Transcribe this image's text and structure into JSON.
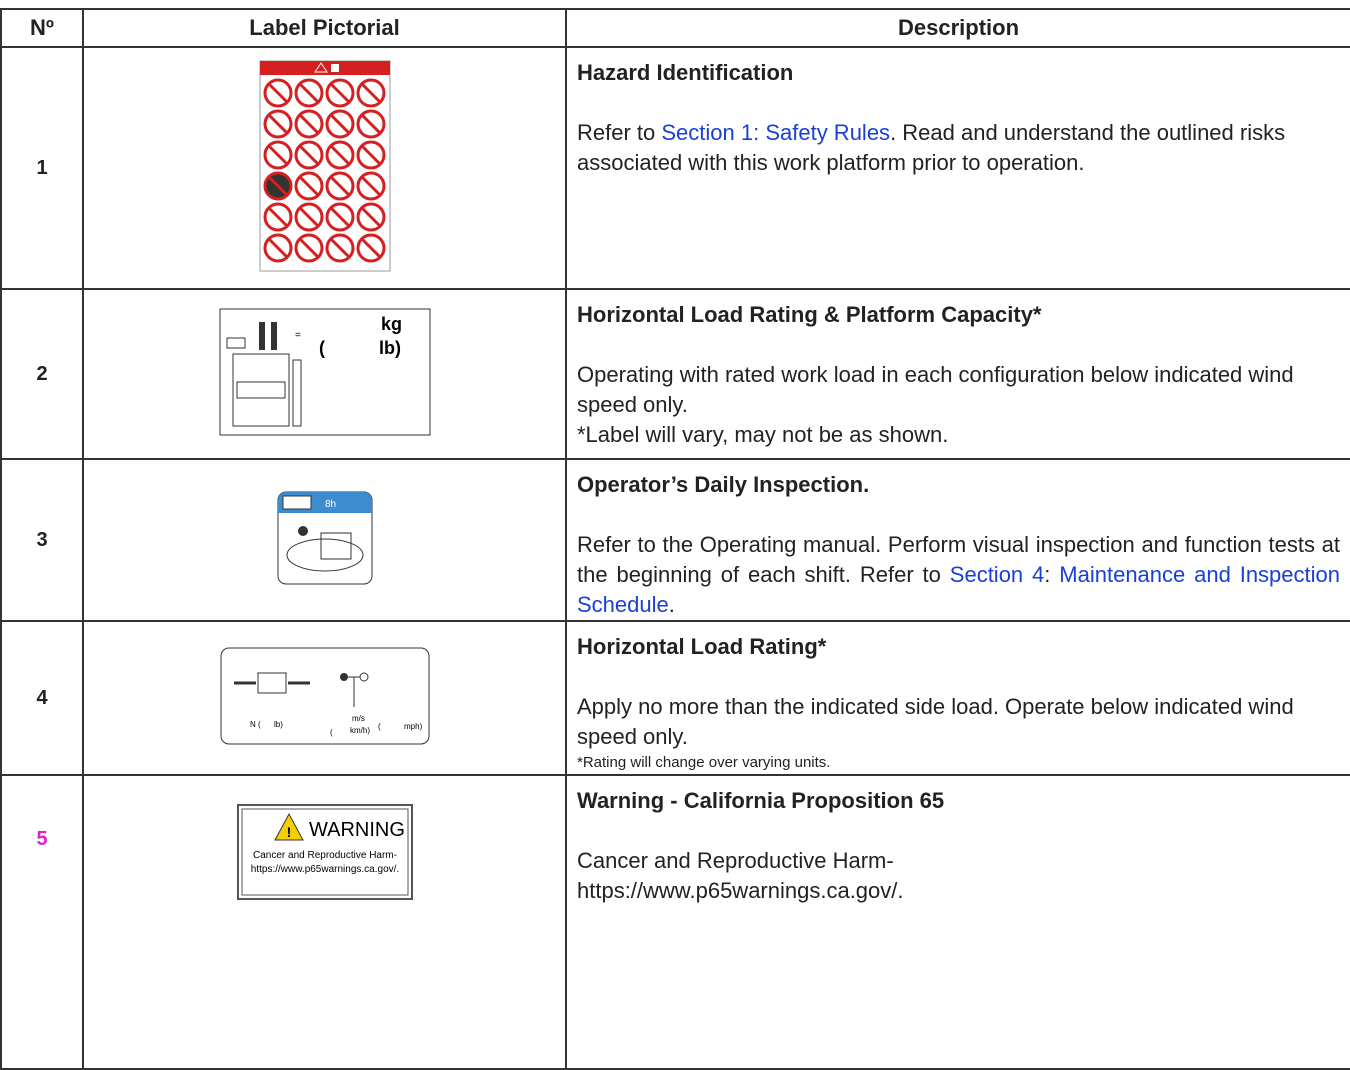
{
  "header": {
    "number": "Nº",
    "pictorial": "Label Pictorial",
    "description": "Description"
  },
  "rows": [
    {
      "number": "1",
      "title": "Hazard Identification",
      "body": [
        [
          {
            "text": "Refer to "
          },
          {
            "link": "Section 1: Safety Rules"
          },
          {
            "text": ". Read and understand the outlined risks associated with this work platform prior to operation."
          }
        ]
      ]
    },
    {
      "number": "2",
      "title": "Horizontal Load Rating & Platform Capacity*",
      "label_texts": [
        "=",
        "kg",
        "(",
        "lb)"
      ],
      "body": [
        [
          {
            "text": "Operating with rated work load in each configuration below indicated wind speed only."
          }
        ],
        [
          {
            "text": "*Label will vary, may not be as shown."
          }
        ]
      ]
    },
    {
      "number": "3",
      "title": "Operator’s Daily Inspection.",
      "label_texts": [
        "8h"
      ],
      "body": [
        [
          {
            "text": "Refer to the Operating manual. Perform visual inspection and function tests at the beginning of each shift. Refer to "
          },
          {
            "link": "Section 4"
          },
          {
            "text": ": "
          },
          {
            "link": "Maintenance and Inspection Schedule"
          },
          {
            "text": "."
          }
        ]
      ]
    },
    {
      "number": "4",
      "title": "Horizontal Load Rating*",
      "label_texts": [
        "N (",
        "lb)",
        "m/s",
        "(",
        "km/h)",
        "(",
        "mph)"
      ],
      "body": [
        [
          {
            "text": "Apply no more than the indicated side load. Operate below indicated wind speed only."
          }
        ]
      ],
      "note": "*Rating will change over varying units."
    },
    {
      "number": "5",
      "title": "Warning - California Proposition 65",
      "label_texts": [
        "WARNING",
        "Cancer and Reproductive Harm-",
        "https://www.p65warnings.ca.gov/."
      ],
      "body": [
        [
          {
            "text": "Cancer and Reproductive Harm-"
          }
        ],
        [
          {
            "text": "https://www.p65warnings.ca.gov/."
          }
        ]
      ]
    }
  ]
}
